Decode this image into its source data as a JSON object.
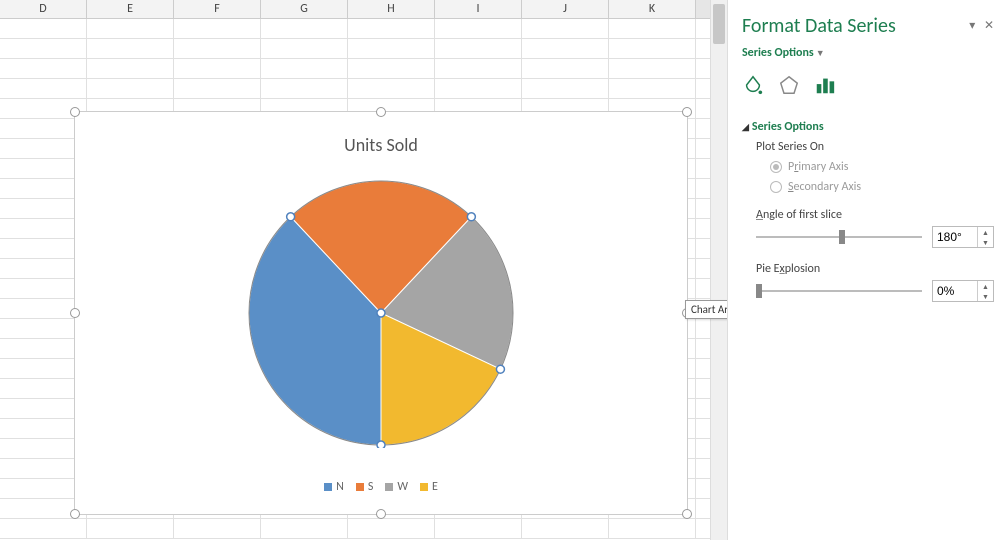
{
  "columns": [
    "D",
    "E",
    "F",
    "G",
    "H",
    "I",
    "J",
    "K"
  ],
  "chart": {
    "title": "Units Sold",
    "title_fontsize": 18,
    "title_color": "#595959",
    "background_color": "#ffffff",
    "pie_border_color": "#888888",
    "pie_border_width": 1,
    "first_slice_angle_deg": 180,
    "series": [
      {
        "label": "N",
        "color": "#5a8fc7",
        "value": 38
      },
      {
        "label": "S",
        "color": "#e97c3a",
        "value": 24
      },
      {
        "label": "W",
        "color": "#a5a5a5",
        "value": 20
      },
      {
        "label": "E",
        "color": "#f2b92f",
        "value": 18
      }
    ],
    "legend": {
      "position": "bottom",
      "fontsize": 12,
      "text_color": "#666666"
    },
    "selection_handle_color": "#4f81bd"
  },
  "tooltip": "Chart Area",
  "panel": {
    "title": "Format Data Series",
    "dropdown_label": "Series Options",
    "section_header": "Series Options",
    "plot_on_label": "Plot Series On",
    "primary_label_pre": "P",
    "primary_label_acc": "r",
    "primary_label_post": "imary Axis",
    "secondary_label_pre": "",
    "secondary_label_acc": "S",
    "secondary_label_post": "econdary Axis",
    "angle_label_pre": "",
    "angle_label_acc": "A",
    "angle_label_post": "ngle of first slice",
    "angle_value": "180°",
    "explosion_label_pre": "Pie E",
    "explosion_label_acc": "x",
    "explosion_label_post": "plosion",
    "explosion_value": "0%",
    "accent_color": "#1e7e50",
    "angle_slider_pct": 50,
    "explosion_slider_pct": 0
  }
}
